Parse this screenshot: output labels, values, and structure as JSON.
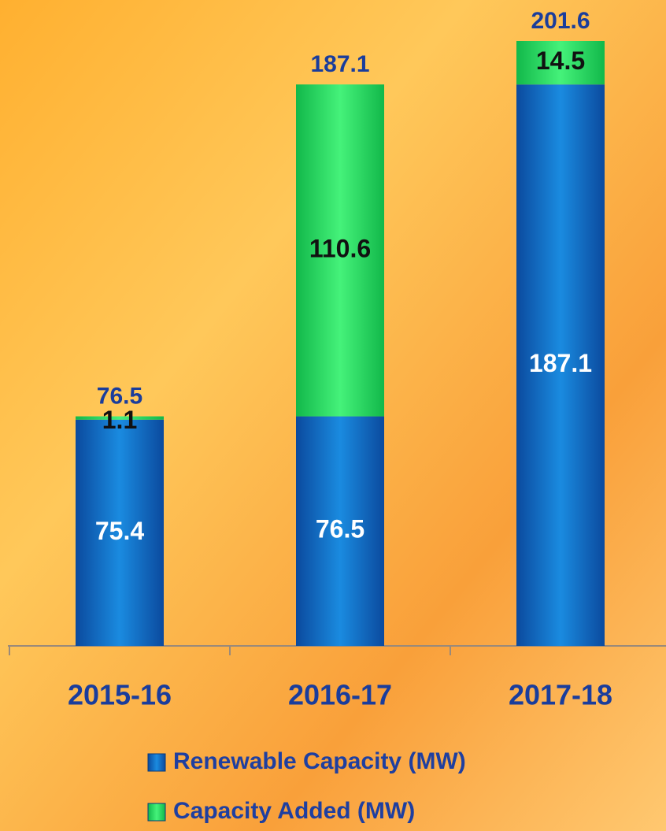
{
  "chart_data": {
    "type": "stacked_bar",
    "categories": [
      "2015-16",
      "2016-17",
      "2017-18"
    ],
    "series": [
      {
        "name": "Renewable Capacity (MW)",
        "color": "#1565c0",
        "values": [
          75.4,
          76.5,
          187.1
        ]
      },
      {
        "name": "Capacity Added (MW)",
        "color": "#22dd5a",
        "values": [
          1.1,
          110.6,
          14.5
        ]
      }
    ],
    "totals": [
      76.5,
      187.1,
      201.6
    ],
    "ylim": [
      0,
      210
    ]
  }
}
